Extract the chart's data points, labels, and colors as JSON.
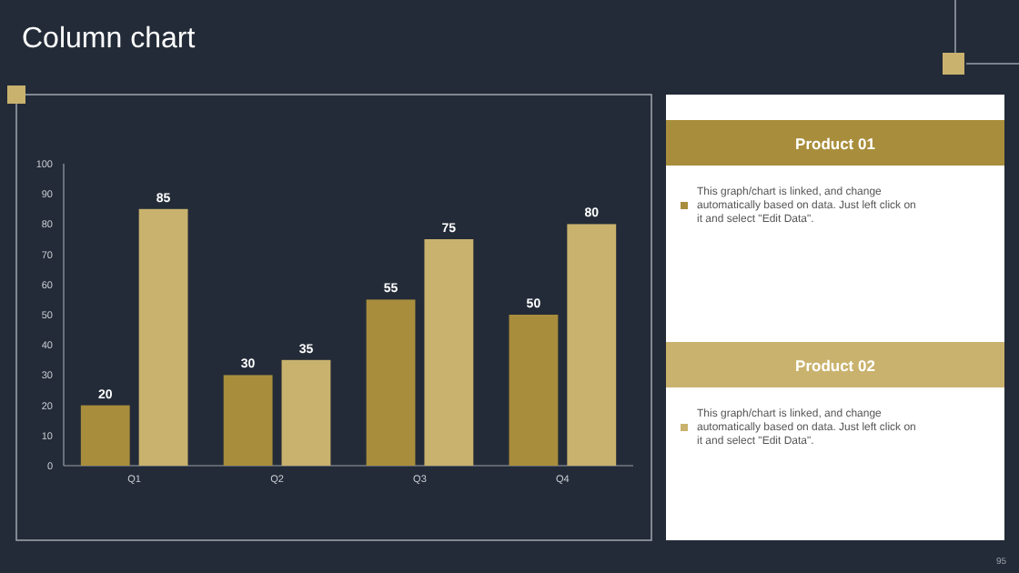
{
  "chart_data": {
    "type": "bar",
    "title": "Column chart",
    "categories": [
      "Q1",
      "Q2",
      "Q3",
      "Q4"
    ],
    "series": [
      {
        "name": "Product 01",
        "color": "#a88d3c",
        "values": [
          20,
          30,
          55,
          50
        ]
      },
      {
        "name": "Product 02",
        "color": "#c9b26d",
        "values": [
          85,
          35,
          75,
          80
        ]
      }
    ],
    "ylim": [
      0,
      100
    ],
    "yticks": [
      0,
      10,
      20,
      30,
      40,
      50,
      60,
      70,
      80,
      90,
      100
    ],
    "data_labels": true,
    "grid": false,
    "legend": "right",
    "annotations": [
      "This graph/chart is linked, and change automatically based on data. Just left click on it and select \"Edit Data\".",
      "This graph/chart is linked, and change automatically based on data. Just left click on it and select \"Edit Data\".",
      "95"
    ]
  }
}
